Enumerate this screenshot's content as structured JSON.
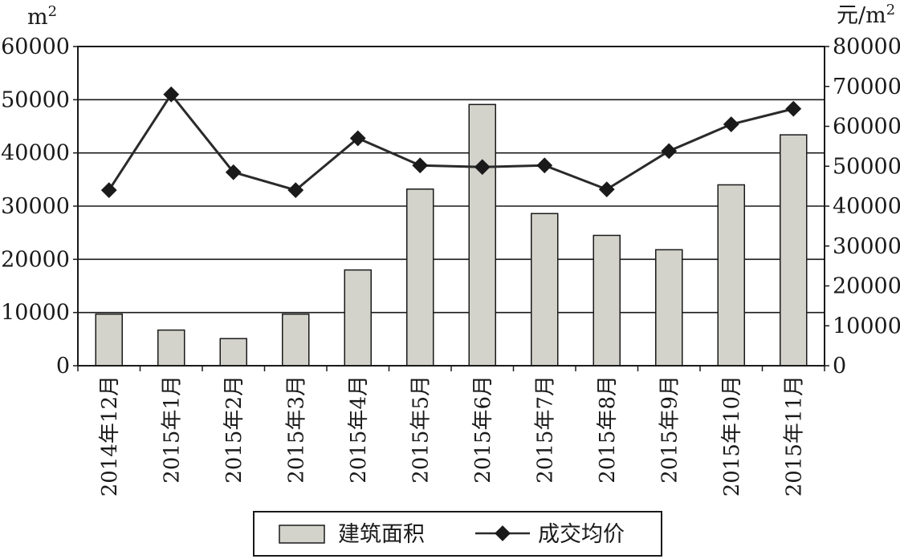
{
  "chart_data": {
    "type": "bar",
    "categories": [
      "2014年12月",
      "2015年1月",
      "2015年2月",
      "2015年3月",
      "2015年4月",
      "2015年5月",
      "2015年6月",
      "2015年7月",
      "2015年8月",
      "2015年9月",
      "2015年10月",
      "2015年11月"
    ],
    "series": [
      {
        "name": "建筑面积",
        "type": "bar",
        "axis": "left",
        "values": [
          9700,
          6700,
          5100,
          9700,
          18000,
          33200,
          49100,
          28600,
          24500,
          21800,
          34000,
          43400
        ],
        "color": "#d3d3cb"
      },
      {
        "name": "成交均价",
        "type": "line",
        "axis": "right",
        "values": [
          44000,
          68000,
          48500,
          44000,
          57000,
          50200,
          49800,
          50200,
          44200,
          53800,
          60500,
          64400
        ],
        "color": "#2a2a2a"
      }
    ],
    "y_left": {
      "unit": "m2",
      "ylim": [
        0,
        60000
      ],
      "ticks": [
        "0",
        "10000",
        "20000",
        "30000",
        "40000",
        "50000",
        "60000"
      ]
    },
    "y_right": {
      "unit": "元/m2",
      "ylim": [
        0,
        80000
      ],
      "ticks": [
        "0",
        "10000",
        "20000",
        "30000",
        "40000",
        "50000",
        "60000",
        "70000",
        "80000"
      ]
    },
    "grid": true,
    "legend_position": "bottom-center"
  },
  "legend": {
    "bar_label": "建筑面积",
    "line_label": "成交均价"
  }
}
